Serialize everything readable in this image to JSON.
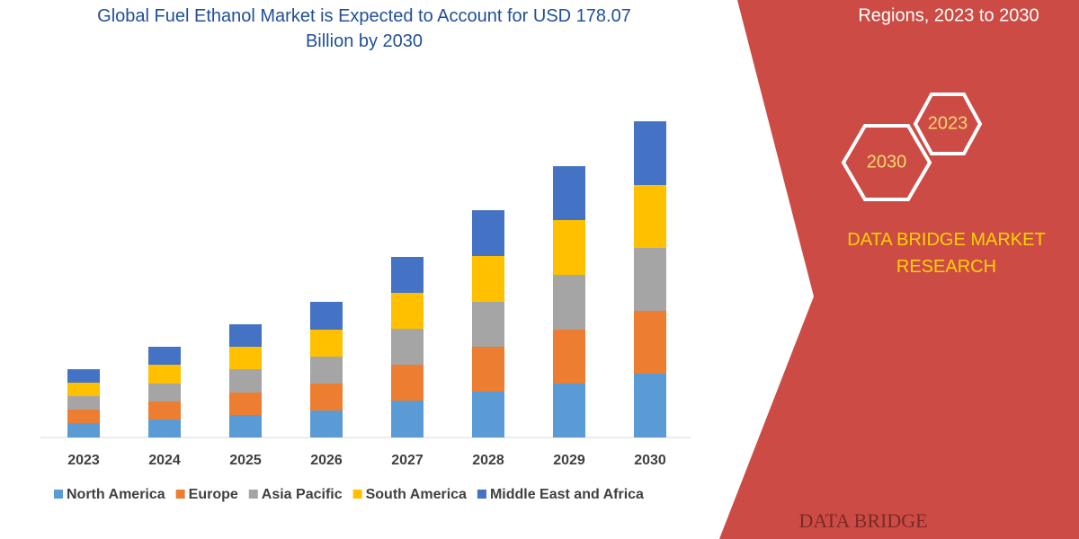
{
  "chart_data": {
    "type": "stacked_bar",
    "title": "Global Fuel Ethanol Market is Expected to Account for USD 178.07 Billion by 2030",
    "categories": [
      "2023",
      "2024",
      "2025",
      "2026",
      "2027",
      "2028",
      "2029",
      "2030"
    ],
    "series": [
      {
        "name": "North America",
        "color": "#5b9bd5",
        "values": [
          16,
          20,
          25,
          30,
          41,
          51,
          60,
          71
        ]
      },
      {
        "name": "Europe",
        "color": "#ed7d31",
        "values": [
          15,
          20,
          25,
          30,
          40,
          50,
          60,
          70
        ]
      },
      {
        "name": "Asia Pacific",
        "color": "#a5a5a5",
        "values": [
          15,
          20,
          26,
          30,
          40,
          50,
          61,
          70
        ]
      },
      {
        "name": "South America",
        "color": "#ffc000",
        "values": [
          15,
          21,
          25,
          30,
          40,
          51,
          61,
          70
        ]
      },
      {
        "name": "Middle East and Africa",
        "color": "#4472c4",
        "values": [
          15,
          20,
          25,
          31,
          40,
          51,
          60,
          71
        ]
      }
    ],
    "ylim": [
      0,
      360
    ]
  },
  "side_panel": {
    "subtitle": "Regions, 2023 to 2030",
    "badges": [
      "2023",
      "2030"
    ],
    "brand": "DATA BRIDGE MARKET RESEARCH",
    "logo": "DATA BRIDGE"
  }
}
